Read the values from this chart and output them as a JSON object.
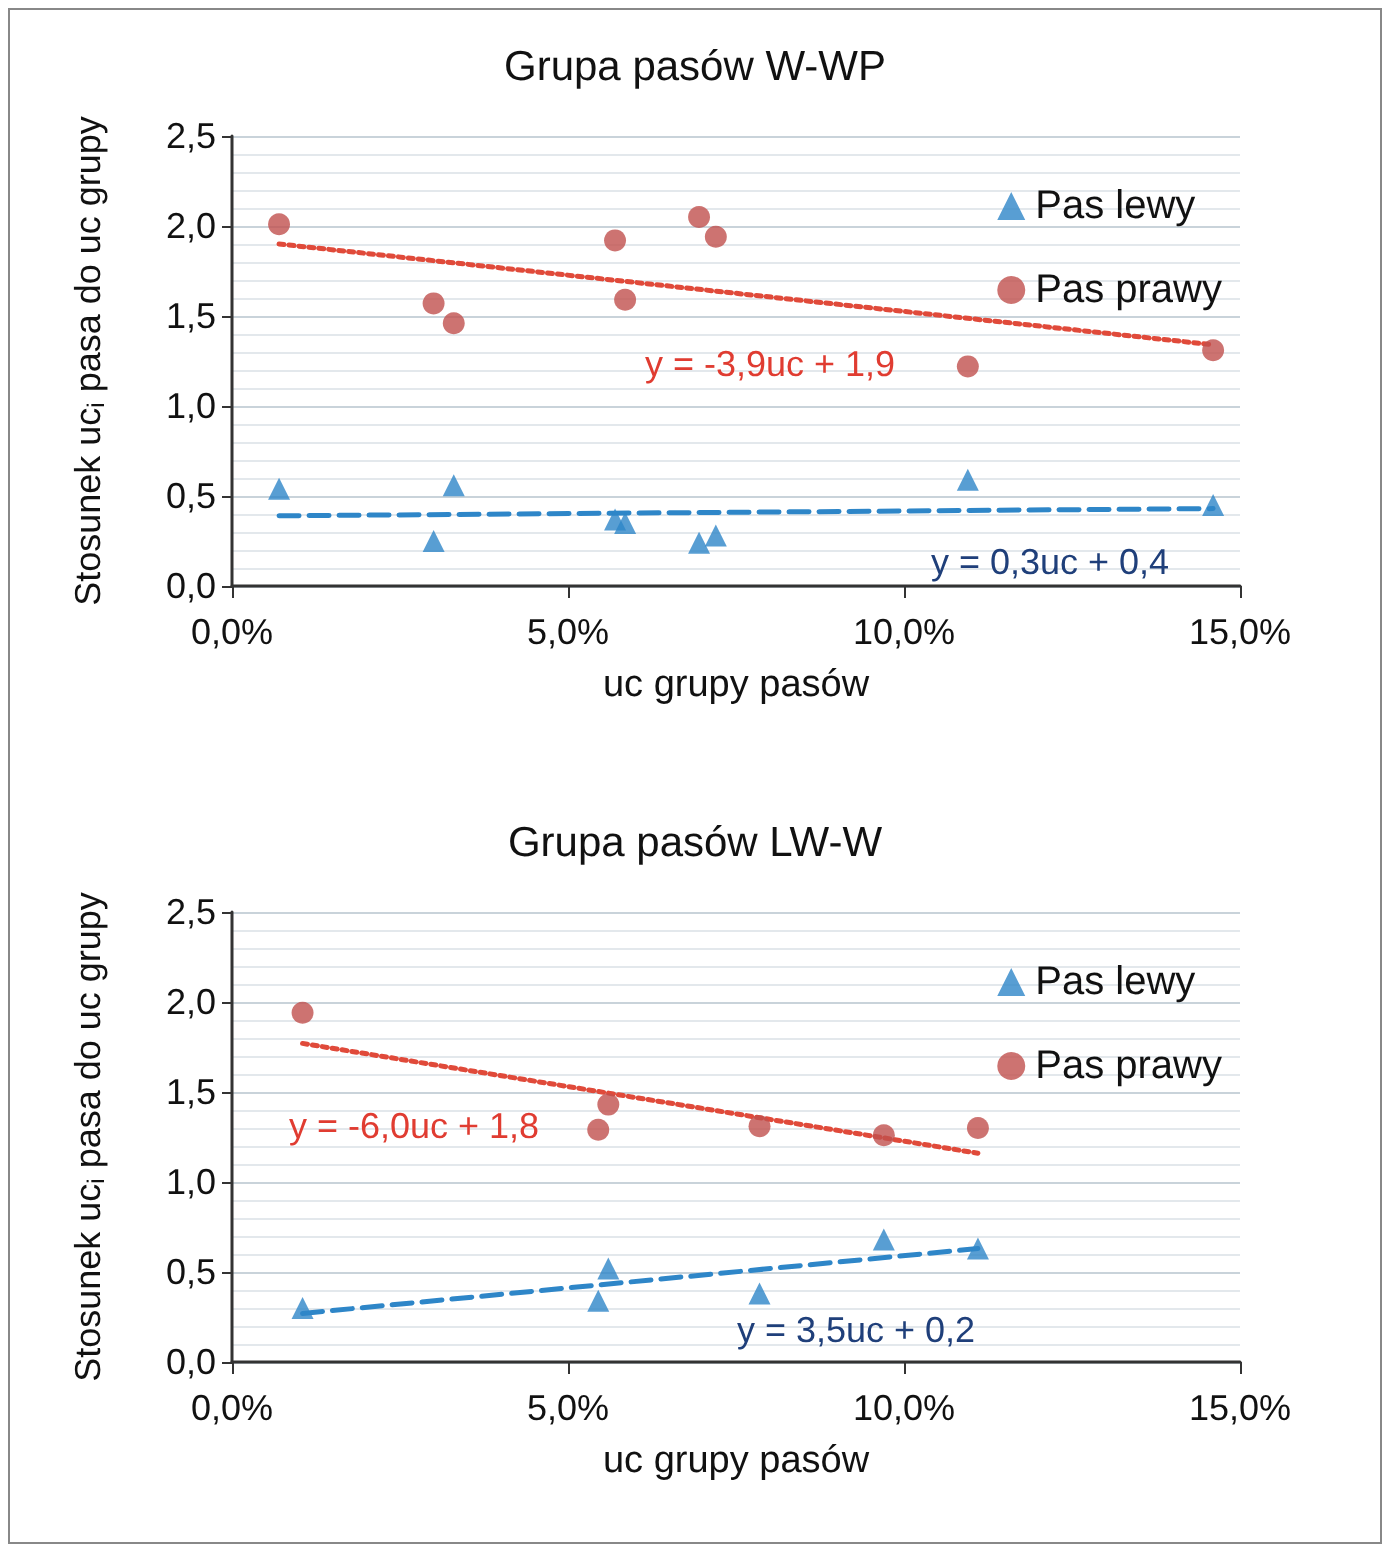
{
  "chart_data": [
    {
      "type": "scatter",
      "title": "Grupa pasów W-WP",
      "xlabel": "uc grupy pasów",
      "ylabel": "Stosunek uc$_{i}$ pasa do uc grupy",
      "xlim": [
        0,
        15
      ],
      "xticks": [
        {
          "value": 0,
          "label": "0,0%"
        },
        {
          "value": 5,
          "label": "5,0%"
        },
        {
          "value": 10,
          "label": "10,0%"
        },
        {
          "value": 15,
          "label": "15,0%"
        }
      ],
      "ylim": [
        0,
        2.5
      ],
      "yticks": [
        {
          "value": 0,
          "label": "0,0"
        },
        {
          "value": 0.5,
          "label": "0,5"
        },
        {
          "value": 1,
          "label": "1,0"
        },
        {
          "value": 1.5,
          "label": "1,5"
        },
        {
          "value": 2,
          "label": "2,0"
        },
        {
          "value": 2.5,
          "label": "2,5"
        }
      ],
      "grid": "y",
      "legend": "top right",
      "series": [
        {
          "name": "Pas lewy",
          "color": "#2e86c8",
          "marker": "triangle",
          "x": [
            0.7,
            3.0,
            3.3,
            5.7,
            5.85,
            6.95,
            7.2,
            10.95,
            14.6
          ],
          "values": [
            0.54,
            0.25,
            0.56,
            0.37,
            0.35,
            0.24,
            0.28,
            0.59,
            0.45
          ]
        },
        {
          "name": "Pas prawy",
          "color": "#c0504d",
          "marker": "circle",
          "x": [
            0.7,
            3.0,
            3.3,
            5.7,
            5.85,
            6.95,
            7.2,
            10.95,
            14.6
          ],
          "values": [
            2.01,
            1.57,
            1.46,
            1.92,
            1.59,
            2.05,
            1.94,
            1.22,
            1.31
          ]
        },
        {
          "type": "line",
          "color": "#2e86c8",
          "line_style": "dashed",
          "marker": "none",
          "x": [
            0.7,
            14.6
          ],
          "values": [
            0.39,
            0.43
          ]
        },
        {
          "type": "line",
          "color": "#e04a3a",
          "line_style": "dotted",
          "marker": "none",
          "x": [
            0.7,
            14.6
          ],
          "values": [
            1.9,
            1.34
          ]
        }
      ],
      "annotations": [
        "y = -3,9uc + 1,9",
        "y = 0,3uc + 0,4"
      ]
    },
    {
      "type": "scatter",
      "title": "Grupa pasów LW-W",
      "xlabel": "uc grupy pasów",
      "ylabel": "Stosunek uc$_{i}$ pasa do uc grupy",
      "xlim": [
        0,
        15
      ],
      "xticks": [
        {
          "value": 0,
          "label": "0,0%"
        },
        {
          "value": 5,
          "label": "5,0%"
        },
        {
          "value": 10,
          "label": "10,0%"
        },
        {
          "value": 15,
          "label": "15,0%"
        }
      ],
      "ylim": [
        0,
        2.5
      ],
      "yticks": [
        {
          "value": 0,
          "label": "0,0"
        },
        {
          "value": 0.5,
          "label": "0,5"
        },
        {
          "value": 1,
          "label": "1,0"
        },
        {
          "value": 1.5,
          "label": "1,5"
        },
        {
          "value": 2,
          "label": "2,0"
        },
        {
          "value": 2.5,
          "label": "2,5"
        }
      ],
      "grid": "y",
      "legend": "top right",
      "series": [
        {
          "name": "Pas lewy",
          "color": "#2e86c8",
          "marker": "triangle",
          "x": [
            1.05,
            5.45,
            5.6,
            7.85,
            9.7,
            11.1
          ],
          "values": [
            0.3,
            0.34,
            0.52,
            0.38,
            0.68,
            0.63
          ]
        },
        {
          "name": "Pas prawy",
          "color": "#c0504d",
          "marker": "circle",
          "x": [
            1.05,
            5.45,
            5.6,
            7.85,
            9.7,
            11.1
          ],
          "values": [
            1.94,
            1.29,
            1.43,
            1.31,
            1.26,
            1.3
          ]
        },
        {
          "type": "line",
          "color": "#2e86c8",
          "line_style": "dashed",
          "marker": "none",
          "x": [
            1.05,
            11.1
          ],
          "values": [
            0.27,
            0.63
          ]
        },
        {
          "type": "line",
          "color": "#e04a3a",
          "line_style": "dotted",
          "marker": "none",
          "x": [
            1.05,
            11.1
          ],
          "values": [
            1.77,
            1.16
          ]
        }
      ],
      "annotations": [
        "y = -6,0uc + 1,8",
        "y = 3,5uc + 0,2"
      ]
    }
  ]
}
